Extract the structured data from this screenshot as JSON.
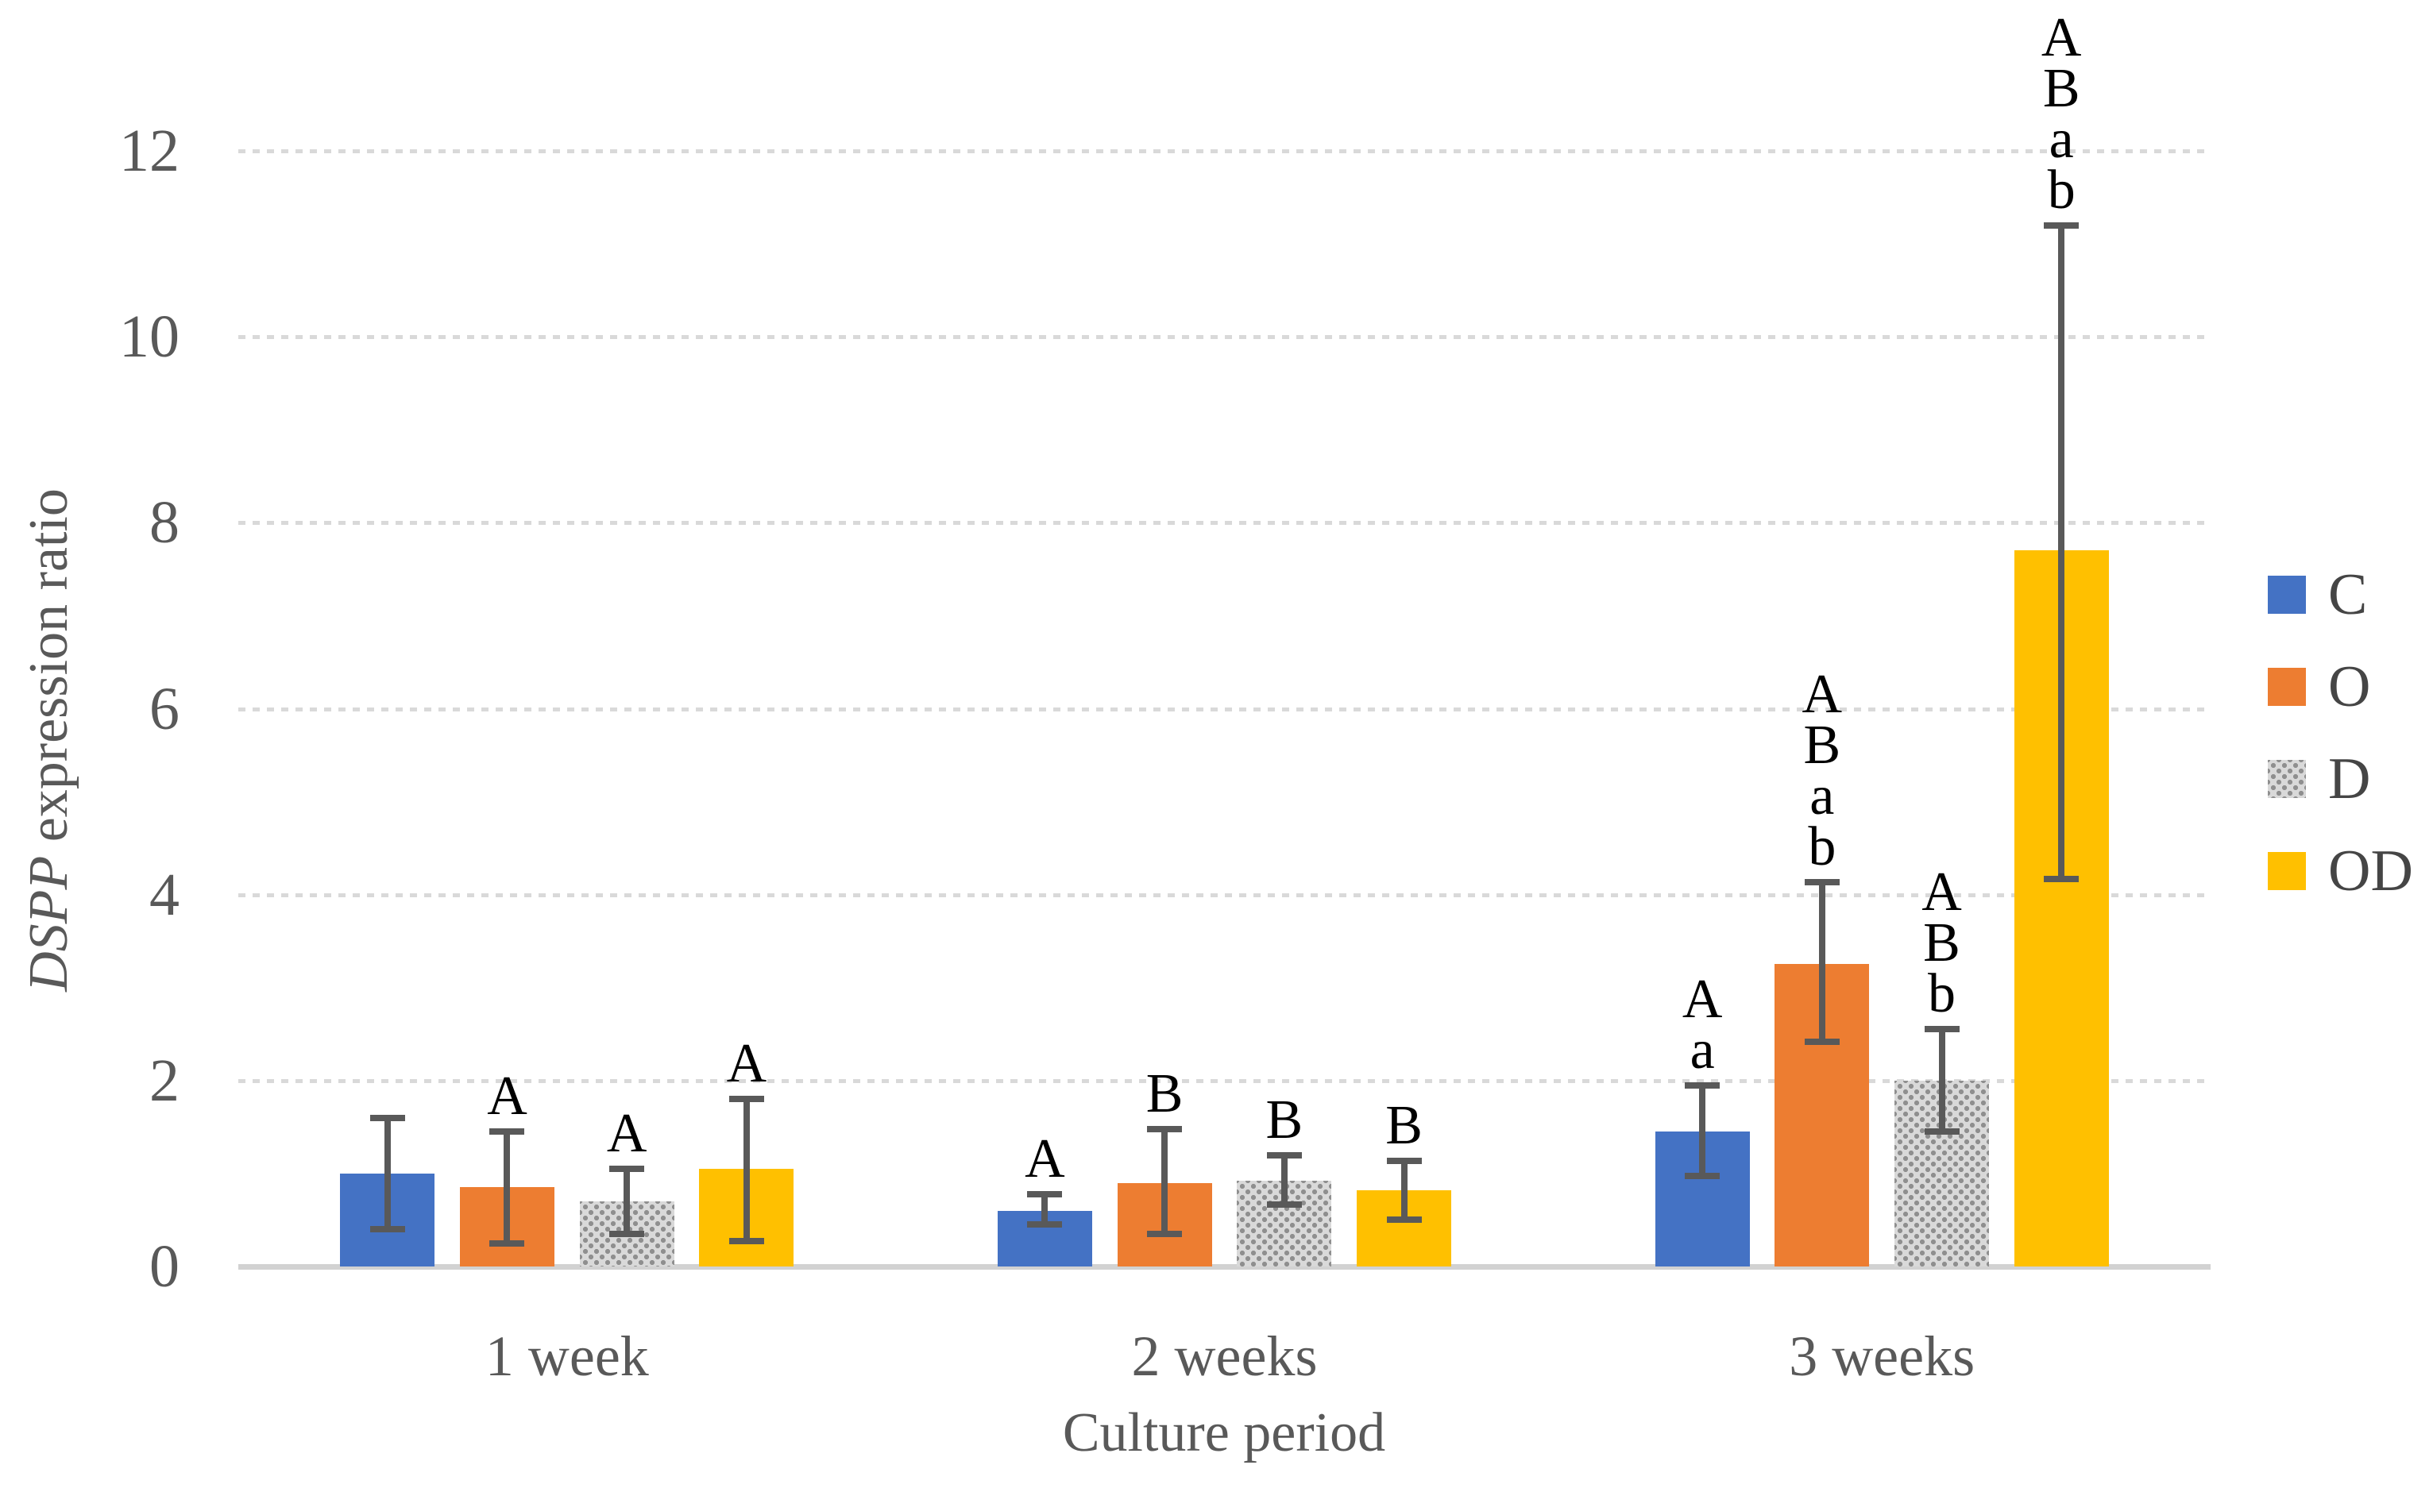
{
  "chart_data": {
    "type": "bar",
    "title": "",
    "xlabel": "Culture period",
    "ylabel": "DSPP expression ratio",
    "ylabel_italic": "DSPP",
    "ylabel_rest": " expression ratio",
    "categories": [
      "1 week",
      "2 weeks",
      "3 weeks"
    ],
    "y_ticks": [
      0,
      2,
      4,
      6,
      8,
      10,
      12
    ],
    "ylim": [
      0,
      12.6
    ],
    "grid": "horizontal-dashed",
    "legend_position": "right",
    "error_bars": "plus-minus, dark gray caps",
    "significance_letters_note": "letters stacked above error bars, top-to-bottom order as listed",
    "series": [
      {
        "name": "C",
        "color": "#4472C4",
        "pattern": "solid",
        "values": [
          1.0,
          0.6,
          1.45
        ],
        "err_high": [
          0.6,
          0.18,
          0.5
        ],
        "err_low": [
          0.6,
          0.15,
          0.48
        ],
        "letters": [
          [],
          [
            "A"
          ],
          [
            "A",
            "a"
          ]
        ]
      },
      {
        "name": "O",
        "color": "#ED7D31",
        "pattern": "solid",
        "values": [
          0.85,
          0.9,
          3.25
        ],
        "err_high": [
          0.6,
          0.58,
          0.88
        ],
        "err_low": [
          0.6,
          0.55,
          0.83
        ],
        "letters": [
          [
            "A"
          ],
          [
            "B"
          ],
          [
            "A",
            "B",
            "a",
            "b"
          ]
        ]
      },
      {
        "name": "D",
        "color": "#A5A5A5",
        "pattern": "dotted",
        "values": [
          0.7,
          0.92,
          2.0
        ],
        "err_high": [
          0.35,
          0.28,
          0.55
        ],
        "err_low": [
          0.35,
          0.25,
          0.55
        ],
        "letters": [
          [
            "A"
          ],
          [
            "B"
          ],
          [
            "A",
            "B",
            "b"
          ]
        ]
      },
      {
        "name": "OD",
        "color": "#FFC000",
        "pattern": "solid",
        "values": [
          1.05,
          0.82,
          7.7
        ],
        "err_high": [
          0.75,
          0.32,
          3.5
        ],
        "err_low": [
          0.78,
          0.32,
          3.53
        ],
        "letters": [
          [
            "A"
          ],
          [
            "B"
          ],
          [
            "A",
            "B",
            "a",
            "b"
          ]
        ]
      }
    ],
    "colors": {
      "grid": "#D9D9D9",
      "axis_text": "#595959",
      "error_bar": "#595959",
      "letters": "#000000"
    }
  }
}
